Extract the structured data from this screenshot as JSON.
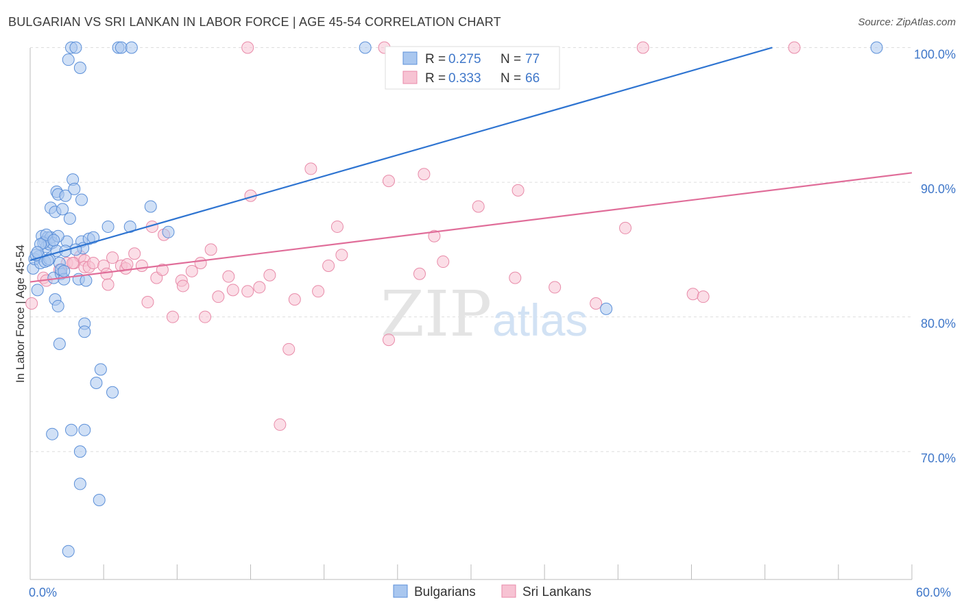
{
  "chart_data": {
    "type": "scatter",
    "title": "BULGARIAN VS SRI LANKAN IN LABOR FORCE | AGE 45-54 CORRELATION CHART",
    "source": "Source: ZipAtlas.com",
    "xlabel": "",
    "ylabel": "In Labor Force | Age 45-54",
    "xlim": [
      0,
      60
    ],
    "ylim": [
      60.5,
      101.5
    ],
    "x_tick_labels": [
      "0.0%",
      "60.0%"
    ],
    "y_ticks": [
      70,
      80,
      90,
      100
    ],
    "y_tick_labels": [
      "70.0%",
      "80.0%",
      "90.0%",
      "100.0%"
    ],
    "watermark": {
      "zip": "ZIP",
      "atlas": "atlas"
    },
    "legend_stats": [
      {
        "r_label": "R = ",
        "r_value": "0.275",
        "n_label": "N = ",
        "n_value": "77"
      },
      {
        "r_label": "R = ",
        "r_value": "0.333",
        "n_label": "N = ",
        "n_value": "66"
      }
    ],
    "colors": {
      "blue_fill": "#a9c7ef",
      "blue_stroke": "#5b8fd8",
      "blue_line": "#2e74d1",
      "pink_fill": "#f7c3d3",
      "pink_stroke": "#e88aa8",
      "pink_line": "#e06d99",
      "tick_text": "#3f77c9",
      "grid": "#dddddd"
    },
    "series": [
      {
        "name": "Bulgarians",
        "trend": [
          [
            0,
            84.2
          ],
          [
            50.5,
            100.0
          ]
        ],
        "points": [
          [
            0.2,
            83.6
          ],
          [
            0.3,
            84.3
          ],
          [
            0.5,
            82.0
          ],
          [
            0.6,
            84.5
          ],
          [
            0.7,
            84.0
          ],
          [
            0.8,
            86.0
          ],
          [
            1.0,
            85.6
          ],
          [
            1.0,
            84.1
          ],
          [
            1.1,
            85.2
          ],
          [
            1.2,
            85.9
          ],
          [
            1.3,
            85.4
          ],
          [
            1.4,
            85.9
          ],
          [
            1.4,
            88.1
          ],
          [
            1.5,
            85.5
          ],
          [
            1.6,
            82.9
          ],
          [
            1.7,
            81.3
          ],
          [
            1.7,
            87.8
          ],
          [
            1.8,
            84.9
          ],
          [
            1.8,
            89.3
          ],
          [
            1.9,
            80.8
          ],
          [
            1.9,
            89.1
          ],
          [
            2.0,
            84.0
          ],
          [
            2.0,
            78.0
          ],
          [
            2.1,
            83.2
          ],
          [
            2.1,
            83.5
          ],
          [
            2.2,
            88.0
          ],
          [
            2.3,
            82.8
          ],
          [
            2.4,
            89.0
          ],
          [
            2.5,
            85.6
          ],
          [
            2.6,
            99.1
          ],
          [
            2.7,
            87.3
          ],
          [
            2.8,
            100.0
          ],
          [
            2.9,
            90.2
          ],
          [
            3.0,
            89.5
          ],
          [
            3.1,
            100.0
          ],
          [
            3.3,
            82.8
          ],
          [
            3.4,
            98.5
          ],
          [
            3.5,
            88.7
          ],
          [
            3.5,
            85.6
          ],
          [
            3.6,
            85.1
          ],
          [
            3.7,
            79.5
          ],
          [
            3.7,
            78.9
          ],
          [
            3.8,
            82.7
          ],
          [
            4.0,
            85.8
          ],
          [
            4.3,
            85.9
          ],
          [
            4.5,
            75.1
          ],
          [
            4.8,
            76.1
          ],
          [
            5.3,
            86.7
          ],
          [
            5.6,
            74.4
          ],
          [
            6.0,
            100.0
          ],
          [
            6.2,
            100.0
          ],
          [
            6.8,
            86.7
          ],
          [
            6.9,
            100.0
          ],
          [
            8.2,
            88.2
          ],
          [
            9.4,
            86.3
          ],
          [
            22.8,
            100.0
          ],
          [
            39.2,
            80.6
          ],
          [
            57.6,
            100.0
          ],
          [
            1.5,
            71.3
          ],
          [
            2.8,
            71.6
          ],
          [
            3.7,
            71.6
          ],
          [
            3.4,
            70.0
          ],
          [
            3.4,
            67.6
          ],
          [
            4.7,
            66.4
          ],
          [
            2.6,
            62.6
          ],
          [
            1.3,
            84.3
          ],
          [
            0.9,
            85.5
          ],
          [
            1.1,
            86.1
          ],
          [
            2.3,
            83.4
          ],
          [
            0.4,
            84.6
          ],
          [
            1.2,
            84.2
          ],
          [
            3.1,
            85.0
          ],
          [
            1.9,
            86.0
          ],
          [
            0.7,
            85.4
          ],
          [
            2.4,
            84.9
          ],
          [
            1.6,
            85.7
          ],
          [
            0.5,
            84.8
          ]
        ]
      },
      {
        "name": "Sri Lankans",
        "trend": [
          [
            0,
            82.6
          ],
          [
            60,
            90.7
          ]
        ],
        "points": [
          [
            0.1,
            81.0
          ],
          [
            0.9,
            82.9
          ],
          [
            1.1,
            82.7
          ],
          [
            2.0,
            83.5
          ],
          [
            2.5,
            84.0
          ],
          [
            3.0,
            84.0
          ],
          [
            3.4,
            84.5
          ],
          [
            3.7,
            84.2
          ],
          [
            3.7,
            83.7
          ],
          [
            4.0,
            83.7
          ],
          [
            4.3,
            84.0
          ],
          [
            5.0,
            83.8
          ],
          [
            5.2,
            83.2
          ],
          [
            5.3,
            82.4
          ],
          [
            5.6,
            84.4
          ],
          [
            6.2,
            83.8
          ],
          [
            6.5,
            83.6
          ],
          [
            6.6,
            83.9
          ],
          [
            7.1,
            84.7
          ],
          [
            7.6,
            83.8
          ],
          [
            8.0,
            81.1
          ],
          [
            8.3,
            86.7
          ],
          [
            8.6,
            82.9
          ],
          [
            9.0,
            83.5
          ],
          [
            9.1,
            86.1
          ],
          [
            9.7,
            80.0
          ],
          [
            10.3,
            82.7
          ],
          [
            10.4,
            82.3
          ],
          [
            11.0,
            83.4
          ],
          [
            11.6,
            84.0
          ],
          [
            11.9,
            80.0
          ],
          [
            12.3,
            85.0
          ],
          [
            12.8,
            81.5
          ],
          [
            13.5,
            83.0
          ],
          [
            13.8,
            82.0
          ],
          [
            14.8,
            81.9
          ],
          [
            15.0,
            89.0
          ],
          [
            15.6,
            82.2
          ],
          [
            16.3,
            83.1
          ],
          [
            17.6,
            77.6
          ],
          [
            17.0,
            72.0
          ],
          [
            18.0,
            81.3
          ],
          [
            19.1,
            91.0
          ],
          [
            19.6,
            81.9
          ],
          [
            20.3,
            83.8
          ],
          [
            20.9,
            86.7
          ],
          [
            21.2,
            84.6
          ],
          [
            24.4,
            90.1
          ],
          [
            24.4,
            78.3
          ],
          [
            26.5,
            83.2
          ],
          [
            26.8,
            90.6
          ],
          [
            27.5,
            86.0
          ],
          [
            28.1,
            84.1
          ],
          [
            30.5,
            88.2
          ],
          [
            33.0,
            82.9
          ],
          [
            33.2,
            89.4
          ],
          [
            35.7,
            82.2
          ],
          [
            38.5,
            81.0
          ],
          [
            40.5,
            86.6
          ],
          [
            41.7,
            100.0
          ],
          [
            45.1,
            81.7
          ],
          [
            45.8,
            81.5
          ],
          [
            24.1,
            100.0
          ],
          [
            52.0,
            100.0
          ],
          [
            14.8,
            100.0
          ],
          [
            2.9,
            84.0
          ]
        ]
      }
    ]
  }
}
